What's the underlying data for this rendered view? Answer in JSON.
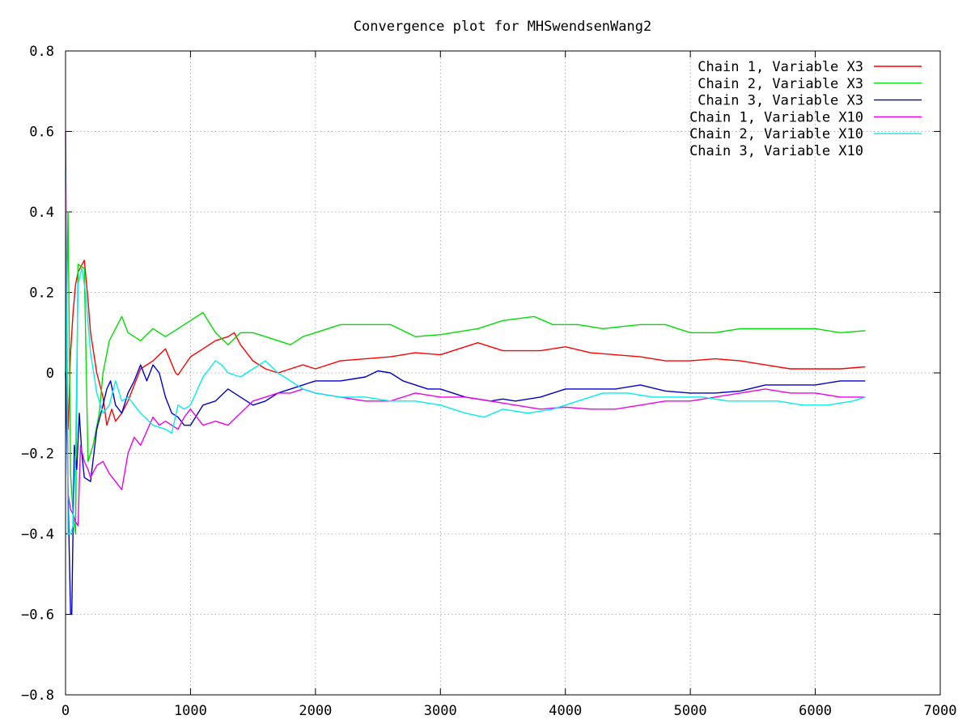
{
  "chart_data": {
    "type": "line",
    "title": "Convergence plot for MHSwendsenWang2",
    "xlabel": "",
    "ylabel": "",
    "xlim": [
      0,
      7000
    ],
    "ylim": [
      -0.8,
      0.8
    ],
    "xticks": [
      0,
      1000,
      2000,
      3000,
      4000,
      5000,
      6000,
      7000
    ],
    "yticks": [
      -0.8,
      -0.6,
      -0.4,
      -0.2,
      0,
      0.2,
      0.4,
      0.6,
      0.8
    ],
    "xtick_labels": [
      "0",
      "1000",
      "2000",
      "3000",
      "4000",
      "5000",
      "6000",
      "7000"
    ],
    "ytick_labels": [
      "−0.8",
      "−0.6",
      "−0.4",
      "−0.2",
      "0",
      "0.2",
      "0.4",
      "0.6",
      "0.8"
    ],
    "grid": true,
    "legend_position": "top-right",
    "series": [
      {
        "name": "Chain 1, Variable X3",
        "color": "#ff0000",
        "x": [
          0,
          20,
          40,
          60,
          80,
          100,
          150,
          180,
          200,
          250,
          300,
          330,
          370,
          400,
          450,
          500,
          600,
          700,
          800,
          880,
          900,
          1000,
          1100,
          1200,
          1300,
          1350,
          1400,
          1500,
          1600,
          1700,
          1800,
          1900,
          2000,
          2200,
          2400,
          2600,
          2800,
          3000,
          3300,
          3500,
          3800,
          4000,
          4200,
          4400,
          4600,
          4800,
          5000,
          5200,
          5400,
          5600,
          5800,
          6000,
          6200,
          6400
        ],
        "y": [
          0.0,
          -0.14,
          0.05,
          0.15,
          0.22,
          0.25,
          0.28,
          0.18,
          0.1,
          0.0,
          -0.06,
          -0.13,
          -0.09,
          -0.12,
          -0.1,
          -0.07,
          0.01,
          0.03,
          0.06,
          0.0,
          -0.005,
          0.04,
          0.06,
          0.08,
          0.09,
          0.1,
          0.07,
          0.03,
          0.01,
          0.0,
          0.01,
          0.02,
          0.01,
          0.03,
          0.035,
          0.04,
          0.05,
          0.045,
          0.075,
          0.055,
          0.055,
          0.065,
          0.05,
          0.045,
          0.04,
          0.03,
          0.03,
          0.035,
          0.03,
          0.02,
          0.01,
          0.01,
          0.01,
          0.015
        ]
      },
      {
        "name": "Chain 2, Variable X3",
        "color": "#00dd00",
        "x": [
          0,
          20,
          40,
          60,
          80,
          100,
          150,
          180,
          220,
          270,
          300,
          350,
          400,
          450,
          500,
          550,
          600,
          700,
          800,
          900,
          1000,
          1100,
          1200,
          1300,
          1400,
          1500,
          1600,
          1700,
          1800,
          1900,
          2000,
          2200,
          2400,
          2600,
          2800,
          3000,
          3300,
          3500,
          3750,
          3900,
          4100,
          4300,
          4600,
          4800,
          5000,
          5200,
          5400,
          5600,
          5800,
          6000,
          6200,
          6400
        ],
        "y": [
          0.0,
          0.4,
          -0.25,
          -0.35,
          -0.4,
          0.27,
          0.26,
          -0.22,
          -0.18,
          -0.1,
          0.0,
          0.08,
          0.11,
          0.14,
          0.1,
          0.09,
          0.08,
          0.11,
          0.09,
          0.11,
          0.13,
          0.15,
          0.1,
          0.07,
          0.1,
          0.1,
          0.09,
          0.08,
          0.07,
          0.09,
          0.1,
          0.12,
          0.12,
          0.12,
          0.09,
          0.095,
          0.11,
          0.13,
          0.14,
          0.12,
          0.12,
          0.11,
          0.12,
          0.12,
          0.1,
          0.1,
          0.11,
          0.11,
          0.11,
          0.11,
          0.1,
          0.105
        ]
      },
      {
        "name": "Chain 3, Variable X3",
        "color": "#0000cc",
        "x": [
          0,
          40,
          50,
          70,
          90,
          110,
          130,
          150,
          200,
          250,
          300,
          330,
          360,
          400,
          450,
          500,
          550,
          600,
          650,
          700,
          750,
          800,
          850,
          900,
          950,
          1000,
          1100,
          1200,
          1300,
          1400,
          1500,
          1600,
          1700,
          1800,
          1900,
          2000,
          2100,
          2200,
          2300,
          2400,
          2500,
          2600,
          2700,
          2800,
          2900,
          3000,
          3100,
          3200,
          3300,
          3400,
          3500,
          3600,
          3800,
          4000,
          4200,
          4400,
          4600,
          4800,
          5000,
          5200,
          5400,
          5600,
          5800,
          6000,
          6200,
          6400
        ],
        "y": [
          0.0,
          -0.6,
          -0.6,
          -0.18,
          -0.24,
          -0.1,
          -0.2,
          -0.26,
          -0.27,
          -0.14,
          -0.08,
          -0.04,
          -0.02,
          -0.08,
          -0.1,
          -0.05,
          -0.02,
          0.02,
          -0.02,
          0.02,
          0.0,
          -0.06,
          -0.1,
          -0.11,
          -0.13,
          -0.13,
          -0.08,
          -0.07,
          -0.04,
          -0.06,
          -0.08,
          -0.07,
          -0.05,
          -0.04,
          -0.03,
          -0.02,
          -0.02,
          -0.02,
          -0.015,
          -0.01,
          0.005,
          0.0,
          -0.02,
          -0.03,
          -0.04,
          -0.04,
          -0.05,
          -0.06,
          -0.065,
          -0.07,
          -0.065,
          -0.07,
          -0.06,
          -0.04,
          -0.04,
          -0.04,
          -0.03,
          -0.045,
          -0.05,
          -0.05,
          -0.045,
          -0.03,
          -0.03,
          -0.03,
          -0.02,
          -0.02
        ]
      },
      {
        "name": "Chain 1, Variable X10",
        "color": "#ee00ee",
        "x": [
          0,
          20,
          40,
          60,
          80,
          100,
          120,
          150,
          180,
          200,
          250,
          300,
          350,
          400,
          450,
          500,
          550,
          600,
          700,
          750,
          800,
          850,
          900,
          950,
          1000,
          1100,
          1200,
          1300,
          1400,
          1500,
          1600,
          1700,
          1800,
          1900,
          2000,
          2200,
          2400,
          2600,
          2800,
          3000,
          3200,
          3400,
          3600,
          3800,
          4000,
          4200,
          4400,
          4600,
          4800,
          5000,
          5200,
          5400,
          5600,
          5800,
          6000,
          6200,
          6400
        ],
        "y": [
          0.6,
          -0.3,
          -0.34,
          -0.35,
          -0.37,
          -0.38,
          -0.18,
          -0.22,
          -0.24,
          -0.26,
          -0.23,
          -0.22,
          -0.25,
          -0.27,
          -0.29,
          -0.2,
          -0.16,
          -0.18,
          -0.11,
          -0.13,
          -0.12,
          -0.13,
          -0.14,
          -0.11,
          -0.09,
          -0.13,
          -0.12,
          -0.13,
          -0.1,
          -0.07,
          -0.06,
          -0.05,
          -0.05,
          -0.04,
          -0.05,
          -0.06,
          -0.07,
          -0.07,
          -0.05,
          -0.06,
          -0.06,
          -0.07,
          -0.08,
          -0.09,
          -0.085,
          -0.09,
          -0.09,
          -0.08,
          -0.07,
          -0.07,
          -0.06,
          -0.05,
          -0.04,
          -0.05,
          -0.05,
          -0.06,
          -0.06
        ]
      },
      {
        "name": "Chain 2, Variable X10",
        "color": "#00eeee",
        "x": [
          0,
          20,
          40,
          60,
          80,
          100,
          130,
          160,
          200,
          250,
          300,
          350,
          400,
          450,
          500,
          600,
          700,
          800,
          850,
          900,
          950,
          1000,
          1100,
          1200,
          1250,
          1300,
          1400,
          1500,
          1550,
          1600,
          1700,
          1800,
          1900,
          2000,
          2200,
          2400,
          2600,
          2800,
          3000,
          3200,
          3350,
          3500,
          3700,
          3900,
          4100,
          4300,
          4500,
          4700,
          4900,
          5100,
          5300,
          5500,
          5700,
          5900,
          6100,
          6300,
          6400
        ],
        "y": [
          0.5,
          -0.4,
          -0.4,
          -0.38,
          -0.2,
          0.22,
          0.26,
          0.2,
          0.05,
          -0.05,
          -0.1,
          -0.08,
          -0.02,
          -0.07,
          -0.06,
          -0.1,
          -0.13,
          -0.14,
          -0.15,
          -0.08,
          -0.09,
          -0.08,
          -0.01,
          0.03,
          0.02,
          0.0,
          -0.01,
          0.01,
          0.02,
          0.03,
          0.0,
          -0.02,
          -0.04,
          -0.05,
          -0.06,
          -0.06,
          -0.07,
          -0.07,
          -0.08,
          -0.1,
          -0.11,
          -0.09,
          -0.1,
          -0.09,
          -0.07,
          -0.05,
          -0.05,
          -0.06,
          -0.06,
          -0.06,
          -0.07,
          -0.07,
          -0.07,
          -0.08,
          -0.08,
          -0.07,
          -0.06
        ]
      },
      {
        "name": "Chain 3, Variable X10",
        "color": "",
        "x": [],
        "y": []
      }
    ]
  }
}
